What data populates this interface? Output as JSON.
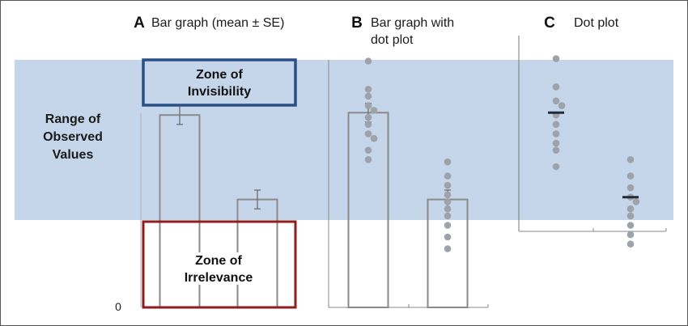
{
  "figure": {
    "range_label": [
      "Range of",
      "Observed",
      "Values"
    ],
    "zero_label": "0",
    "zone_invisibility": [
      "Zone of",
      "Invisibility"
    ],
    "zone_irrelevance": [
      "Zone of",
      "Irrelevance"
    ]
  },
  "colors": {
    "band": "#c5d6ea",
    "bar_stroke": "#8a8a8a",
    "dot": "#9ea3aa",
    "mean_line": "#1f2a3a",
    "invisibility_box": "#2a4f86",
    "irrelevance_box": "#8f1d1d",
    "border": "#555555"
  },
  "chart_data": [
    {
      "type": "bar",
      "panel": "A",
      "title": "Bar graph (mean ± SE)",
      "categories": [
        "",
        ""
      ],
      "values": [
        82,
        46
      ],
      "error": [
        4,
        4
      ],
      "ylim": [
        0,
        110
      ],
      "observed_range": [
        29,
        106
      ]
    },
    {
      "type": "bar",
      "panel": "B",
      "title_lines": [
        "Bar graph with",
        "dot plot"
      ],
      "categories": [
        "",
        ""
      ],
      "values": [
        83,
        46
      ],
      "error": [
        4,
        4
      ],
      "points": [
        [
          105,
          93,
          90,
          86,
          84,
          81,
          78,
          74,
          72,
          67,
          63
        ],
        [
          62,
          56,
          52,
          48,
          45,
          42,
          39,
          35,
          30,
          25
        ]
      ],
      "ylim": [
        0,
        110
      ],
      "observed_range": [
        29,
        106
      ]
    },
    {
      "type": "scatter",
      "panel": "C",
      "title": "Dot plot",
      "categories": [
        "",
        ""
      ],
      "means": [
        83,
        47
      ],
      "points": [
        [
          106,
          94,
          88,
          86,
          82,
          78,
          74,
          70,
          67,
          60
        ],
        [
          63,
          56,
          51,
          47,
          45,
          42,
          39,
          35,
          31,
          27
        ]
      ],
      "ylim": [
        0,
        110
      ],
      "observed_range": [
        29,
        106
      ]
    }
  ]
}
